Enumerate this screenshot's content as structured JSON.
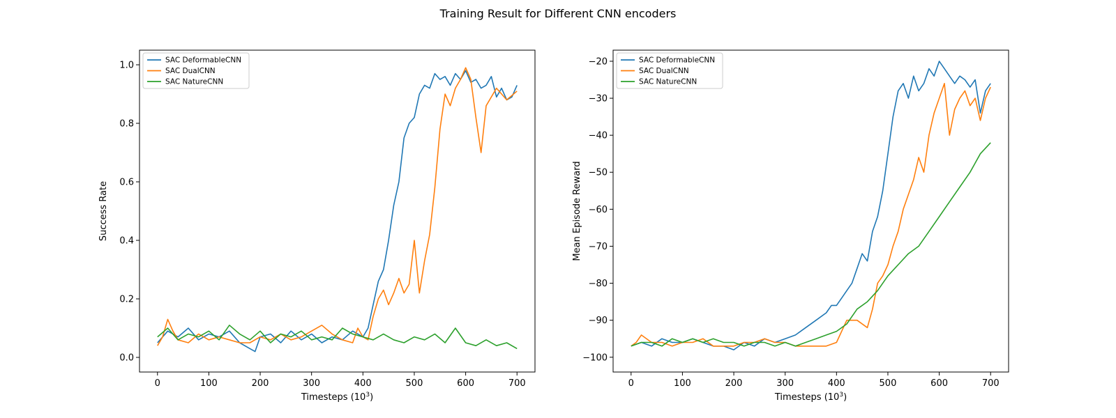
{
  "figure": {
    "title": "Training Result for Different CNN encoders"
  },
  "legend_entries": [
    "SAC DeformableCNN",
    "SAC DualCNN",
    "SAC NatureCNN"
  ],
  "series_colors": [
    "#1f77b4",
    "#ff7f0e",
    "#2ca02c"
  ],
  "chart_data": [
    {
      "type": "line",
      "title": "",
      "xlabel": "Timesteps (10",
      "xlabel_sup": "3",
      "xlabel_end": ")",
      "ylabel": "Success Rate",
      "xlim": [
        -35,
        735
      ],
      "ylim": [
        -0.05,
        1.05
      ],
      "xticks": [
        0,
        100,
        200,
        300,
        400,
        500,
        600,
        700
      ],
      "yticks": [
        0.0,
        0.2,
        0.4,
        0.6,
        0.8,
        1.0
      ],
      "ytick_labels": [
        "0.0",
        "0.2",
        "0.4",
        "0.6",
        "0.8",
        "1.0"
      ],
      "legend_position": "upper-left",
      "grid": false,
      "series": [
        {
          "name": "SAC DeformableCNN",
          "color": "#1f77b4",
          "x": [
            0,
            20,
            40,
            60,
            80,
            100,
            120,
            140,
            160,
            180,
            190,
            200,
            220,
            240,
            260,
            280,
            300,
            320,
            340,
            360,
            380,
            400,
            410,
            420,
            430,
            440,
            450,
            460,
            470,
            480,
            490,
            500,
            510,
            520,
            530,
            540,
            550,
            560,
            570,
            580,
            590,
            600,
            610,
            620,
            630,
            640,
            650,
            660,
            670,
            680,
            690,
            700
          ],
          "y": [
            0.05,
            0.09,
            0.07,
            0.1,
            0.06,
            0.08,
            0.07,
            0.09,
            0.05,
            0.03,
            0.02,
            0.07,
            0.08,
            0.05,
            0.09,
            0.06,
            0.08,
            0.05,
            0.07,
            0.06,
            0.09,
            0.07,
            0.1,
            0.18,
            0.26,
            0.3,
            0.4,
            0.52,
            0.6,
            0.75,
            0.8,
            0.82,
            0.9,
            0.93,
            0.92,
            0.97,
            0.95,
            0.96,
            0.93,
            0.97,
            0.95,
            0.98,
            0.94,
            0.95,
            0.92,
            0.93,
            0.96,
            0.89,
            0.92,
            0.88,
            0.89,
            0.93
          ]
        },
        {
          "name": "SAC DualCNN",
          "color": "#ff7f0e",
          "x": [
            0,
            10,
            20,
            30,
            40,
            60,
            80,
            100,
            120,
            140,
            160,
            180,
            200,
            220,
            240,
            260,
            280,
            300,
            320,
            340,
            360,
            380,
            390,
            400,
            410,
            420,
            430,
            440,
            450,
            460,
            470,
            480,
            490,
            500,
            510,
            520,
            530,
            540,
            550,
            560,
            570,
            580,
            590,
            600,
            610,
            620,
            630,
            640,
            660,
            680,
            700
          ],
          "y": [
            0.04,
            0.07,
            0.13,
            0.09,
            0.06,
            0.05,
            0.08,
            0.06,
            0.07,
            0.06,
            0.05,
            0.05,
            0.07,
            0.06,
            0.08,
            0.06,
            0.07,
            0.09,
            0.11,
            0.08,
            0.06,
            0.05,
            0.1,
            0.07,
            0.06,
            0.14,
            0.2,
            0.23,
            0.18,
            0.22,
            0.27,
            0.22,
            0.25,
            0.4,
            0.22,
            0.33,
            0.42,
            0.58,
            0.78,
            0.9,
            0.86,
            0.92,
            0.95,
            0.99,
            0.95,
            0.82,
            0.7,
            0.86,
            0.92,
            0.88,
            0.91
          ]
        },
        {
          "name": "SAC NatureCNN",
          "color": "#2ca02c",
          "x": [
            0,
            20,
            40,
            60,
            80,
            100,
            120,
            140,
            160,
            180,
            200,
            220,
            240,
            260,
            280,
            300,
            320,
            340,
            360,
            380,
            400,
            420,
            440,
            460,
            480,
            500,
            520,
            540,
            560,
            580,
            600,
            620,
            640,
            660,
            680,
            700
          ],
          "y": [
            0.07,
            0.1,
            0.06,
            0.08,
            0.07,
            0.09,
            0.06,
            0.11,
            0.08,
            0.06,
            0.09,
            0.05,
            0.08,
            0.07,
            0.09,
            0.06,
            0.07,
            0.06,
            0.1,
            0.08,
            0.07,
            0.06,
            0.08,
            0.06,
            0.05,
            0.07,
            0.06,
            0.08,
            0.05,
            0.1,
            0.05,
            0.04,
            0.06,
            0.04,
            0.05,
            0.03
          ]
        }
      ]
    },
    {
      "type": "line",
      "title": "",
      "xlabel": "Timesteps (10",
      "xlabel_sup": "3",
      "xlabel_end": ")",
      "ylabel": "Mean Episode Reward",
      "xlim": [
        -35,
        735
      ],
      "ylim": [
        -104,
        -17
      ],
      "xticks": [
        0,
        100,
        200,
        300,
        400,
        500,
        600,
        700
      ],
      "yticks": [
        -100,
        -90,
        -80,
        -70,
        -60,
        -50,
        -40,
        -30,
        -20
      ],
      "ytick_labels": [
        "−100",
        "−90",
        "−80",
        "−70",
        "−60",
        "−50",
        "−40",
        "−30",
        "−20"
      ],
      "legend_position": "upper-left",
      "grid": false,
      "series": [
        {
          "name": "SAC DeformableCNN",
          "color": "#1f77b4",
          "x": [
            0,
            20,
            40,
            60,
            80,
            100,
            120,
            140,
            160,
            180,
            200,
            220,
            240,
            260,
            280,
            300,
            320,
            340,
            360,
            380,
            390,
            400,
            410,
            420,
            430,
            440,
            450,
            460,
            470,
            480,
            490,
            500,
            510,
            520,
            530,
            540,
            550,
            560,
            570,
            580,
            590,
            600,
            610,
            620,
            630,
            640,
            650,
            660,
            670,
            680,
            690,
            700
          ],
          "y": [
            -97,
            -96,
            -97,
            -95,
            -96,
            -96,
            -95,
            -96,
            -97,
            -97,
            -98,
            -96,
            -97,
            -95,
            -96,
            -95,
            -94,
            -92,
            -90,
            -88,
            -86,
            -86,
            -84,
            -82,
            -80,
            -76,
            -72,
            -74,
            -66,
            -62,
            -55,
            -45,
            -35,
            -28,
            -26,
            -30,
            -24,
            -28,
            -26,
            -22,
            -24,
            -20,
            -22,
            -24,
            -26,
            -24,
            -25,
            -27,
            -25,
            -34,
            -28,
            -26
          ]
        },
        {
          "name": "SAC DualCNN",
          "color": "#ff7f0e",
          "x": [
            0,
            10,
            20,
            40,
            60,
            80,
            100,
            120,
            140,
            160,
            180,
            200,
            220,
            240,
            260,
            280,
            300,
            320,
            340,
            360,
            380,
            400,
            420,
            440,
            460,
            470,
            480,
            490,
            500,
            510,
            520,
            530,
            540,
            550,
            560,
            570,
            580,
            590,
            600,
            610,
            620,
            630,
            640,
            650,
            660,
            670,
            680,
            690,
            700
          ],
          "y": [
            -97,
            -96,
            -94,
            -96,
            -96,
            -97,
            -96,
            -96,
            -95,
            -97,
            -97,
            -97,
            -96,
            -96,
            -95,
            -96,
            -96,
            -97,
            -97,
            -97,
            -97,
            -96,
            -90,
            -90,
            -92,
            -87,
            -80,
            -78,
            -75,
            -70,
            -66,
            -60,
            -56,
            -52,
            -46,
            -50,
            -40,
            -34,
            -30,
            -26,
            -40,
            -33,
            -30,
            -28,
            -32,
            -30,
            -36,
            -30,
            -27
          ]
        },
        {
          "name": "SAC NatureCNN",
          "color": "#2ca02c",
          "x": [
            0,
            20,
            40,
            60,
            80,
            100,
            120,
            140,
            160,
            180,
            200,
            220,
            240,
            260,
            280,
            300,
            320,
            340,
            360,
            380,
            400,
            420,
            440,
            460,
            480,
            500,
            520,
            540,
            560,
            580,
            600,
            620,
            640,
            660,
            680,
            700
          ],
          "y": [
            -97,
            -96,
            -96,
            -97,
            -95,
            -96,
            -95,
            -96,
            -95,
            -96,
            -96,
            -97,
            -96,
            -96,
            -97,
            -96,
            -97,
            -96,
            -95,
            -94,
            -93,
            -91,
            -87,
            -85,
            -82,
            -78,
            -75,
            -72,
            -70,
            -66,
            -62,
            -58,
            -54,
            -50,
            -45,
            -42
          ]
        }
      ]
    }
  ]
}
